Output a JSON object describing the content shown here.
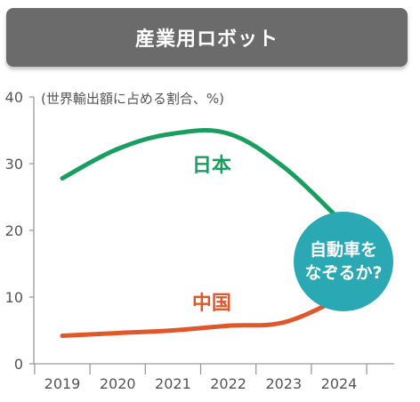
{
  "title": "産業用ロボット",
  "badge": {
    "line1": "自動車を",
    "line2": "なぞるか?"
  },
  "chart_data": {
    "type": "line",
    "ylabel": "(世界輸出額に占める割合、%)",
    "x": [
      "2019",
      "2020",
      "2021",
      "2022",
      "2023",
      "2024"
    ],
    "ylim": [
      0,
      40
    ],
    "yticks": [
      0,
      10,
      20,
      30,
      40
    ],
    "grid": false,
    "series": [
      {
        "name": "日本",
        "color": "#1a9e5f",
        "values": [
          27.8,
          32.2,
          34.5,
          34.5,
          29.5,
          21.7
        ]
      },
      {
        "name": "中国",
        "color": "#e0572a",
        "values": [
          4.2,
          4.6,
          5.0,
          5.7,
          6.2,
          9.7
        ]
      }
    ]
  }
}
